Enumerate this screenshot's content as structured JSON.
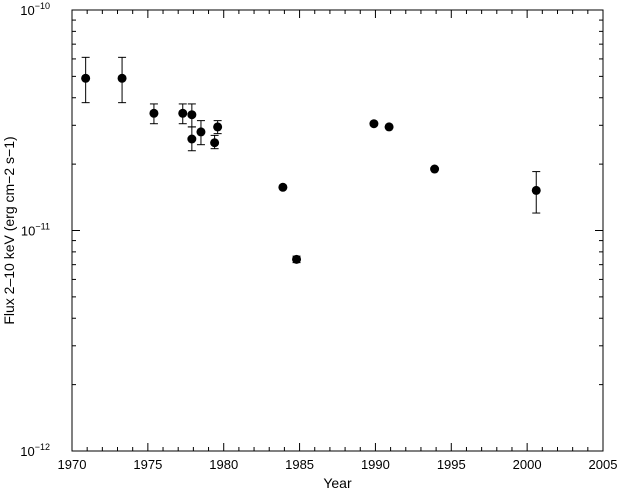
{
  "chart_data": {
    "type": "scatter",
    "xlabel": "Year",
    "ylabel": "Flux 2–10 keV (erg cm−2 s−1)",
    "xlim": [
      1970,
      2005
    ],
    "ylim": [
      1e-12,
      1e-10
    ],
    "y_scale": "log",
    "x_ticks": [
      "1970",
      "1975",
      "1980",
      "1985",
      "1990",
      "1995",
      "2000",
      "2005"
    ],
    "y_ticks": [
      {
        "mantissa": "10",
        "exponent": "−10",
        "value": 1e-10
      },
      {
        "mantissa": "10",
        "exponent": "−11",
        "value": 1e-11
      },
      {
        "mantissa": "10",
        "exponent": "−12",
        "value": 1e-12
      }
    ],
    "grid": false,
    "marker_color": "#000000",
    "points": [
      {
        "x": 1970.9,
        "y": 4.9e-11,
        "ylo": 3.8e-11,
        "yhi": 6.1e-11
      },
      {
        "x": 1973.3,
        "y": 4.9e-11,
        "ylo": 3.8e-11,
        "yhi": 6.1e-11
      },
      {
        "x": 1975.4,
        "y": 3.4e-11,
        "ylo": 3.05e-11,
        "yhi": 3.75e-11
      },
      {
        "x": 1977.3,
        "y": 3.4e-11,
        "ylo": 3.05e-11,
        "yhi": 3.75e-11
      },
      {
        "x": 1977.9,
        "y": 3.35e-11,
        "ylo": 2.95e-11,
        "yhi": 3.75e-11
      },
      {
        "x": 1977.9,
        "y": 2.6e-11,
        "ylo": 2.3e-11,
        "yhi": 2.95e-11
      },
      {
        "x": 1978.5,
        "y": 2.8e-11,
        "ylo": 2.45e-11,
        "yhi": 3.15e-11
      },
      {
        "x": 1979.4,
        "y": 2.5e-11,
        "ylo": 2.35e-11,
        "yhi": 2.7e-11
      },
      {
        "x": 1979.6,
        "y": 2.95e-11,
        "ylo": 2.75e-11,
        "yhi": 3.15e-11
      },
      {
        "x": 1983.9,
        "y": 1.57e-11
      },
      {
        "x": 1984.8,
        "y": 7.4e-12,
        "ylo": 7.15e-12,
        "yhi": 7.65e-12
      },
      {
        "x": 1989.9,
        "y": 3.05e-11
      },
      {
        "x": 1990.9,
        "y": 2.95e-11
      },
      {
        "x": 1993.9,
        "y": 1.9e-11
      },
      {
        "x": 2000.6,
        "y": 1.52e-11,
        "ylo": 1.2e-11,
        "yhi": 1.85e-11
      }
    ]
  }
}
